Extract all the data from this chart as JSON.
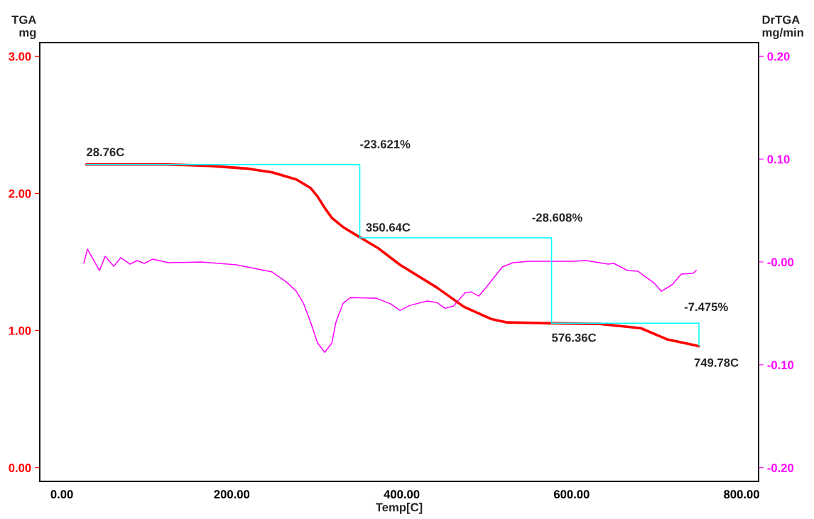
{
  "chart_data": {
    "type": "line",
    "xlabel": "Temp[C]",
    "ylabel": "TGA\nmg",
    "y2label": "DrTGA\nmg/min",
    "xlim": [
      -26,
      820
    ],
    "ylim": [
      -0.1,
      3.1
    ],
    "y2lim": [
      -0.2133,
      0.2133
    ],
    "xticks": [
      {
        "value": 0,
        "label": "0.00"
      },
      {
        "value": 200,
        "label": "200.00"
      },
      {
        "value": 400,
        "label": "400.00"
      },
      {
        "value": 600,
        "label": "600.00"
      },
      {
        "value": 800,
        "label": "800.00"
      }
    ],
    "yticks": [
      {
        "value": 0,
        "label": "0.00"
      },
      {
        "value": 1,
        "label": "1.00"
      },
      {
        "value": 2,
        "label": "2.00"
      },
      {
        "value": 3,
        "label": "3.00"
      }
    ],
    "y2ticks": [
      {
        "value": -0.2,
        "label": "-0.20"
      },
      {
        "value": -0.1,
        "label": "-0.10"
      },
      {
        "value": 0,
        "label": "-0.00"
      },
      {
        "value": 0.1,
        "label": "0.10"
      },
      {
        "value": 0.2,
        "label": "0.20"
      }
    ],
    "grid": false,
    "legend": false,
    "series": [
      {
        "color": "#ff0000",
        "x": [
          28.76,
          123.7,
          173.9,
          219.9,
          247.5,
          275.9,
          292.6,
          301.0,
          309.4,
          317.7,
          331.1,
          347.8,
          372.9,
          398.0,
          441.5,
          473.2,
          505.0,
          524.2,
          569.4,
          632.9,
          681.4,
          713.2,
          745.0,
          749.78
        ],
        "values": [
          2.211,
          2.211,
          2.201,
          2.18,
          2.154,
          2.102,
          2.04,
          1.977,
          1.894,
          1.822,
          1.754,
          1.691,
          1.598,
          1.479,
          1.313,
          1.173,
          1.085,
          1.059,
          1.054,
          1.048,
          1.017,
          0.934,
          0.893,
          0.885
        ]
      },
      {
        "color": "#ff00ff",
        "axis": "y2",
        "x": [
          25.9,
          30.1,
          44.3,
          51.0,
          61.0,
          69.4,
          80.3,
          88.6,
          97.0,
          107.0,
          125.4,
          163.9,
          205.7,
          247.5,
          264.2,
          275.9,
          284.3,
          292.6,
          301.0,
          309.4,
          317.7,
          322.7,
          331.1,
          339.5,
          370.4,
          387.1,
          398.0,
          409.7,
          429.8,
          441.5,
          450.7,
          460.7,
          474.9,
          481.6,
          490.8,
          499.2,
          518.4,
          530.9,
          550.2,
          601.2,
          617.1,
          643.0,
          649.7,
          665.6,
          678.1,
          697.3,
          705.7,
          718.2,
          729.1,
          742.5,
          746.7
        ],
        "values": [
          -0.001,
          0.0125,
          -0.0083,
          0.0055,
          -0.0041,
          0.0042,
          -0.0021,
          0.0014,
          -0.0014,
          0.0028,
          -0.0007,
          0.0,
          -0.0028,
          -0.0097,
          -0.0194,
          -0.0284,
          -0.0401,
          -0.0581,
          -0.0789,
          -0.0879,
          -0.0789,
          -0.0581,
          -0.0401,
          -0.0346,
          -0.0353,
          -0.0408,
          -0.047,
          -0.0422,
          -0.038,
          -0.0394,
          -0.045,
          -0.0429,
          -0.0297,
          -0.0291,
          -0.0332,
          -0.0249,
          -0.0048,
          -0.0007,
          0.0007,
          0.0007,
          0.0014,
          -0.0021,
          -0.0014,
          -0.0083,
          -0.009,
          -0.0207,
          -0.0284,
          -0.0221,
          -0.0118,
          -0.0111,
          -0.0083
        ]
      },
      {
        "color": "#00ffff",
        "x": [
          28.76,
          350.64,
          350.64,
          576.36,
          576.36,
          749.78,
          749.78
        ],
        "values": [
          2.211,
          2.211,
          1.676,
          1.676,
          1.053,
          1.053,
          0.885
        ]
      }
    ],
    "annotations": [
      {
        "text": "28.76C",
        "x": 28.76,
        "y": 2.211
      },
      {
        "text": "-23.621%",
        "x": 350.64,
        "y": 2.211
      },
      {
        "text": "350.64C",
        "x": 350.64,
        "y": 1.676
      },
      {
        "text": "-28.608%",
        "x": 576.36,
        "y": 1.676
      },
      {
        "text": "576.36C",
        "x": 576.36,
        "y": 1.053
      },
      {
        "text": "-7.475%",
        "x": 749.78,
        "y": 1.053
      },
      {
        "text": "749.78C",
        "x": 749.78,
        "y": 0.885
      }
    ]
  }
}
